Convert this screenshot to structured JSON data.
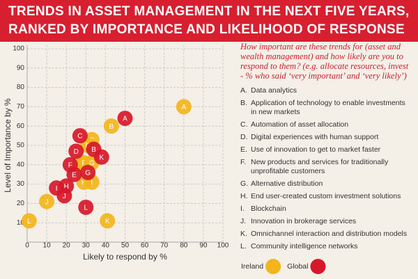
{
  "chart_data": {
    "type": "scatter",
    "title": [
      "TRENDS IN ASSET MANAGEMENT IN THE NEXT FIVE YEARS,",
      "RANKED BY IMPORTANCE AND LIKELIHOOD OF RESPONSE"
    ],
    "subtitle": "How important are these trends for (asset and wealth management) and how likely are you to respond to them? (e.g. allocate resources, invest - % who said ‘very important’ and ‘very likely’)",
    "xlabel": "Likely to respond by %",
    "ylabel": "Level of Importance by %",
    "xlim": [
      0,
      100
    ],
    "ylim": [
      0,
      100
    ],
    "xticks": [
      0,
      10,
      20,
      30,
      40,
      50,
      60,
      70,
      80,
      90,
      100
    ],
    "yticks": [
      10,
      20,
      30,
      40,
      50,
      60,
      70,
      80,
      90,
      100
    ],
    "grid": true,
    "categories": [
      "A",
      "B",
      "C",
      "D",
      "E",
      "F",
      "G",
      "H",
      "I",
      "J",
      "K",
      "L"
    ],
    "series": [
      {
        "name": "Ireland",
        "color": "#f2b51c",
        "x": [
          80,
          43,
          33,
          31,
          27,
          29,
          33,
          29,
          33,
          10,
          41,
          1
        ],
        "values": [
          70,
          60,
          53,
          50,
          41,
          41,
          41,
          31,
          31,
          21,
          11,
          11
        ]
      },
      {
        "name": "Global",
        "color": "#d7182a",
        "x": [
          50,
          34,
          27,
          25,
          24,
          22,
          31,
          20,
          15,
          19,
          38,
          30
        ],
        "values": [
          64,
          48,
          55,
          47,
          35,
          40,
          36,
          29,
          28,
          24,
          44,
          18
        ]
      }
    ],
    "key": [
      {
        "letter": "A.",
        "text": "Data analytics"
      },
      {
        "letter": "B.",
        "text": "Application of technology to enable investments in new markets"
      },
      {
        "letter": "C.",
        "text": "Automation of asset allocation"
      },
      {
        "letter": "D.",
        "text": "Digital experiences with human support"
      },
      {
        "letter": "E.",
        "text": "Use of innovation to get to market faster"
      },
      {
        "letter": "F.",
        "text": "New products and services for traditionally unprofitable customers"
      },
      {
        "letter": "G.",
        "text": "Alternative distribution"
      },
      {
        "letter": "H.",
        "text": "End user-created custom investment solutions"
      },
      {
        "letter": "I.",
        "text": "Blockchain"
      },
      {
        "letter": "J.",
        "text": "Innovation in brokerage services"
      },
      {
        "letter": "K.",
        "text": "Omnichannel interaction and distribution models"
      },
      {
        "letter": "L.",
        "text": "Community intelligence networks"
      }
    ]
  }
}
